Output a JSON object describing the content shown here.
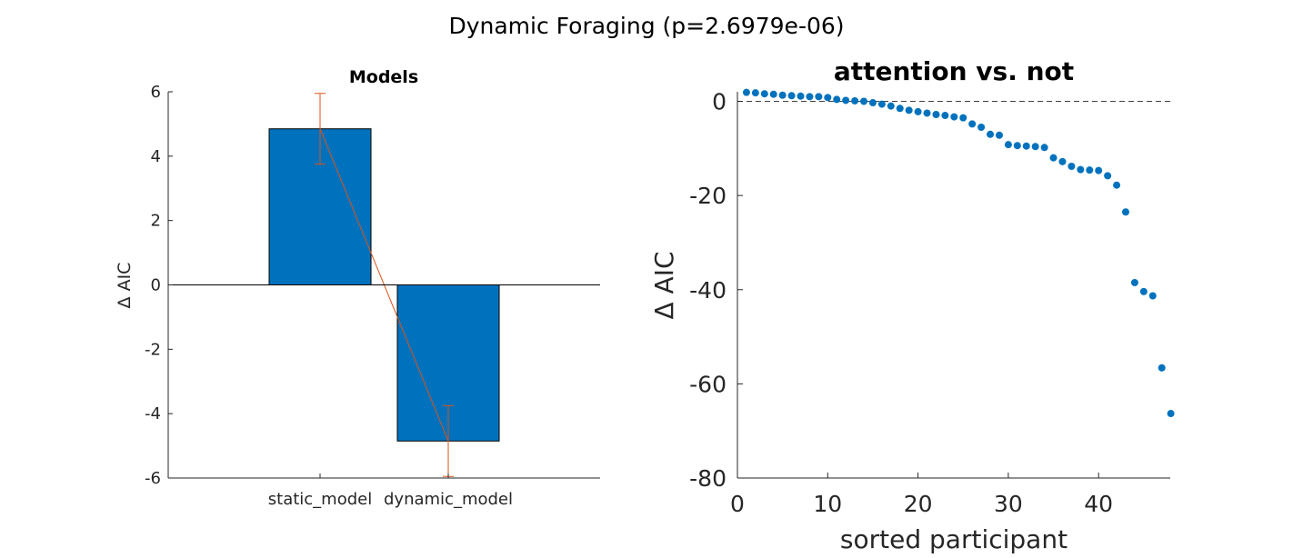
{
  "figure": {
    "suptitle": "Dynamic Foraging (p=2.6979e-06)"
  },
  "chart_data": [
    {
      "type": "bar",
      "title": "Models",
      "xlabel": "",
      "ylabel": "Δ AIC",
      "categories": [
        "static_model",
        "dynamic_model"
      ],
      "values": [
        4.85,
        -4.85
      ],
      "error": [
        1.1,
        1.1
      ],
      "ylim": [
        -6,
        6
      ],
      "yticks": [
        "-6",
        "-4",
        "-2",
        "0",
        "2",
        "4",
        "6"
      ],
      "bar_color": "#0072BD",
      "error_color": "#D95319",
      "grid": false
    },
    {
      "type": "scatter",
      "title": "attention vs. not",
      "xlabel": "sorted participant",
      "ylabel": "Δ AIC",
      "xlim": [
        0,
        48
      ],
      "ylim": [
        -80,
        2
      ],
      "xticks": [
        "0",
        "10",
        "20",
        "30",
        "40"
      ],
      "yticks": [
        "-80",
        "-60",
        "-40",
        "-20",
        "0"
      ],
      "reference_line": 0,
      "marker_color": "#0072BD",
      "grid": false,
      "x": [
        1,
        2,
        3,
        4,
        5,
        6,
        7,
        8,
        9,
        10,
        11,
        12,
        13,
        14,
        15,
        16,
        17,
        18,
        19,
        20,
        21,
        22,
        23,
        24,
        25,
        26,
        27,
        28,
        29,
        30,
        31,
        32,
        33,
        34,
        35,
        36,
        37,
        38,
        39,
        40,
        41,
        42,
        43,
        44,
        45,
        46,
        47,
        48
      ],
      "y": [
        1.9,
        1.8,
        1.6,
        1.5,
        1.3,
        1.2,
        1.1,
        1.0,
        1.0,
        0.8,
        0.4,
        0.2,
        0.1,
        0.0,
        -0.3,
        -0.6,
        -1.0,
        -1.5,
        -1.9,
        -2.2,
        -2.5,
        -2.8,
        -3.0,
        -3.3,
        -3.5,
        -4.8,
        -5.5,
        -7.0,
        -7.2,
        -9.2,
        -9.4,
        -9.5,
        -9.6,
        -9.8,
        -12.0,
        -12.8,
        -13.8,
        -14.5,
        -14.6,
        -14.7,
        -15.8,
        -17.8,
        -23.5,
        -38.5,
        -40.4,
        -41.3,
        -56.6,
        -66.3
      ]
    }
  ]
}
